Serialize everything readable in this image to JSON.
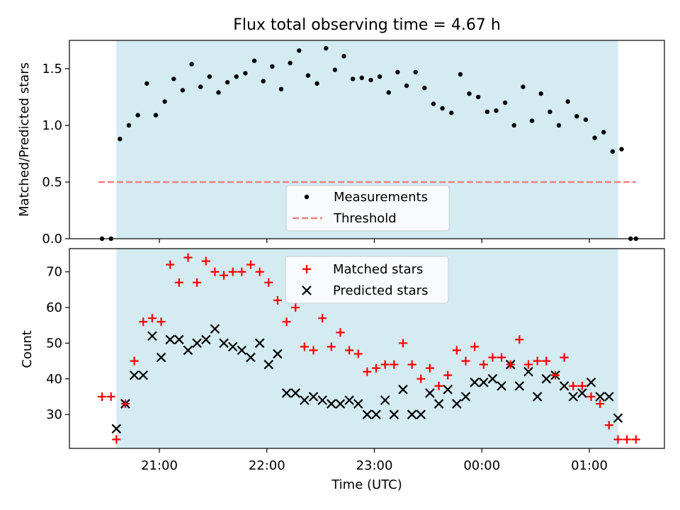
{
  "chart_data": [
    {
      "type": "scatter",
      "title": "Flux total observing time = 4.67 h",
      "xlabel": "",
      "ylabel": "Matched/Predicted stars",
      "ylim": [
        0,
        1.75
      ],
      "yticks": [
        "0.0",
        "0.5",
        "1.0",
        "1.5"
      ],
      "legend_location": "lower-center",
      "observing_window_utc": [
        "20:36",
        "01:16"
      ],
      "observing_window_color": "#d4ebf2",
      "series": [
        {
          "name": "Measurements",
          "marker": "dot",
          "color": "#000000",
          "x": [
            "20:28",
            "20:33",
            "20:38",
            "20:43",
            "20:48",
            "20:53",
            "20:58",
            "21:03",
            "21:08",
            "21:13",
            "21:18",
            "21:23",
            "21:28",
            "21:33",
            "21:38",
            "21:43",
            "21:48",
            "21:53",
            "21:58",
            "22:03",
            "22:08",
            "22:13",
            "22:18",
            "22:23",
            "22:28",
            "22:33",
            "22:38",
            "22:43",
            "22:48",
            "22:53",
            "22:58",
            "23:03",
            "23:08",
            "23:13",
            "23:18",
            "23:23",
            "23:28",
            "23:33",
            "23:38",
            "23:43",
            "23:48",
            "23:53",
            "23:58",
            "00:03",
            "00:08",
            "00:13",
            "00:18",
            "00:23",
            "00:28",
            "00:33",
            "00:38",
            "00:43",
            "00:48",
            "00:53",
            "00:58",
            "01:03",
            "01:08",
            "01:13",
            "01:18",
            "01:23"
          ],
          "y": [
            0,
            0,
            0.88,
            1.0,
            1.09,
            1.37,
            1.09,
            1.21,
            1.41,
            1.31,
            1.54,
            1.34,
            1.43,
            1.29,
            1.38,
            1.43,
            1.46,
            1.57,
            1.39,
            1.52,
            1.32,
            1.55,
            1.66,
            1.44,
            1.37,
            1.68,
            1.49,
            1.61,
            1.41,
            1.42,
            1.4,
            1.43,
            1.29,
            1.47,
            1.35,
            1.47,
            1.33,
            1.19,
            1.15,
            1.11,
            1.45,
            1.28,
            1.25,
            1.12,
            1.13,
            1.2,
            1.0,
            1.34,
            1.04,
            1.28,
            1.12,
            1.0,
            1.21,
            1.08,
            1.05,
            0.89,
            0.94,
            0.77,
            0.79,
            0
          ]
        },
        {
          "name": "Threshold",
          "marker": "dashed-line",
          "color": "#f08080",
          "x": [
            "20:26",
            "01:26"
          ],
          "y": [
            0.5,
            0.5
          ]
        }
      ],
      "extra_zero_points_x": [
        "01:26"
      ]
    },
    {
      "type": "scatter",
      "title": "",
      "xlabel": "Time (UTC)",
      "ylabel": "Count",
      "ylim": [
        20.5,
        76.5
      ],
      "yticks": [
        "30",
        "40",
        "50",
        "60",
        "70"
      ],
      "xticks": [
        "21:00",
        "22:00",
        "23:00",
        "00:00",
        "01:00"
      ],
      "legend_location": "top-center",
      "observing_window_utc": [
        "20:36",
        "01:16"
      ],
      "series": [
        {
          "name": "Matched stars",
          "marker": "plus",
          "color": "#ff0000",
          "x": [
            "20:28",
            "20:33",
            "20:36",
            "20:41",
            "20:46",
            "20:51",
            "20:56",
            "21:01",
            "21:06",
            "21:11",
            "21:16",
            "21:21",
            "21:26",
            "21:31",
            "21:36",
            "21:41",
            "21:46",
            "21:51",
            "21:56",
            "22:01",
            "22:06",
            "22:11",
            "22:16",
            "22:21",
            "22:26",
            "22:31",
            "22:36",
            "22:41",
            "22:46",
            "22:51",
            "22:56",
            "23:01",
            "23:06",
            "23:11",
            "23:16",
            "23:21",
            "23:26",
            "23:31",
            "23:36",
            "23:41",
            "23:46",
            "23:51",
            "23:56",
            "00:01",
            "00:06",
            "00:11",
            "00:16",
            "00:21",
            "00:26",
            "00:31",
            "00:36",
            "00:41",
            "00:46",
            "00:51",
            "00:56",
            "01:01",
            "01:06",
            "01:11",
            "01:16",
            "01:21",
            "01:26"
          ],
          "y": [
            35,
            35,
            23,
            33,
            45,
            56,
            57,
            56,
            72,
            67,
            74,
            67,
            73,
            70,
            69,
            70,
            70,
            72,
            70,
            67,
            62,
            56,
            60,
            49,
            48,
            57,
            49,
            53,
            48,
            47,
            42,
            43,
            44,
            44,
            50,
            44,
            40,
            43,
            38,
            41,
            48,
            45,
            49,
            44,
            46,
            46,
            44,
            51,
            44,
            45,
            45,
            41,
            46,
            38,
            38,
            35,
            33,
            27,
            23,
            23,
            23
          ]
        },
        {
          "name": "Predicted stars",
          "marker": "x",
          "color": "#000000",
          "x": [
            "20:36",
            "20:41",
            "20:46",
            "20:51",
            "20:56",
            "21:01",
            "21:06",
            "21:11",
            "21:16",
            "21:21",
            "21:26",
            "21:31",
            "21:36",
            "21:41",
            "21:46",
            "21:51",
            "21:56",
            "22:01",
            "22:06",
            "22:11",
            "22:16",
            "22:21",
            "22:26",
            "22:31",
            "22:36",
            "22:41",
            "22:46",
            "22:51",
            "22:56",
            "23:01",
            "23:06",
            "23:11",
            "23:16",
            "23:21",
            "23:26",
            "23:31",
            "23:36",
            "23:41",
            "23:46",
            "23:51",
            "23:56",
            "00:01",
            "00:06",
            "00:11",
            "00:16",
            "00:21",
            "00:26",
            "00:31",
            "00:36",
            "00:41",
            "00:46",
            "00:51",
            "00:56",
            "01:01",
            "01:06",
            "01:11",
            "01:16"
          ],
          "y": [
            26,
            33,
            41,
            41,
            52,
            46,
            51,
            51,
            48,
            50,
            51,
            54,
            50,
            49,
            48,
            46,
            50,
            44,
            47,
            36,
            36,
            34,
            35,
            34,
            33,
            33,
            34,
            33,
            30,
            30,
            34,
            30,
            37,
            30,
            30,
            36,
            33,
            37,
            33,
            35,
            39,
            39,
            40,
            38,
            44,
            38,
            42,
            35,
            40,
            41,
            38,
            35,
            36,
            39,
            35,
            35,
            29
          ]
        }
      ]
    }
  ]
}
